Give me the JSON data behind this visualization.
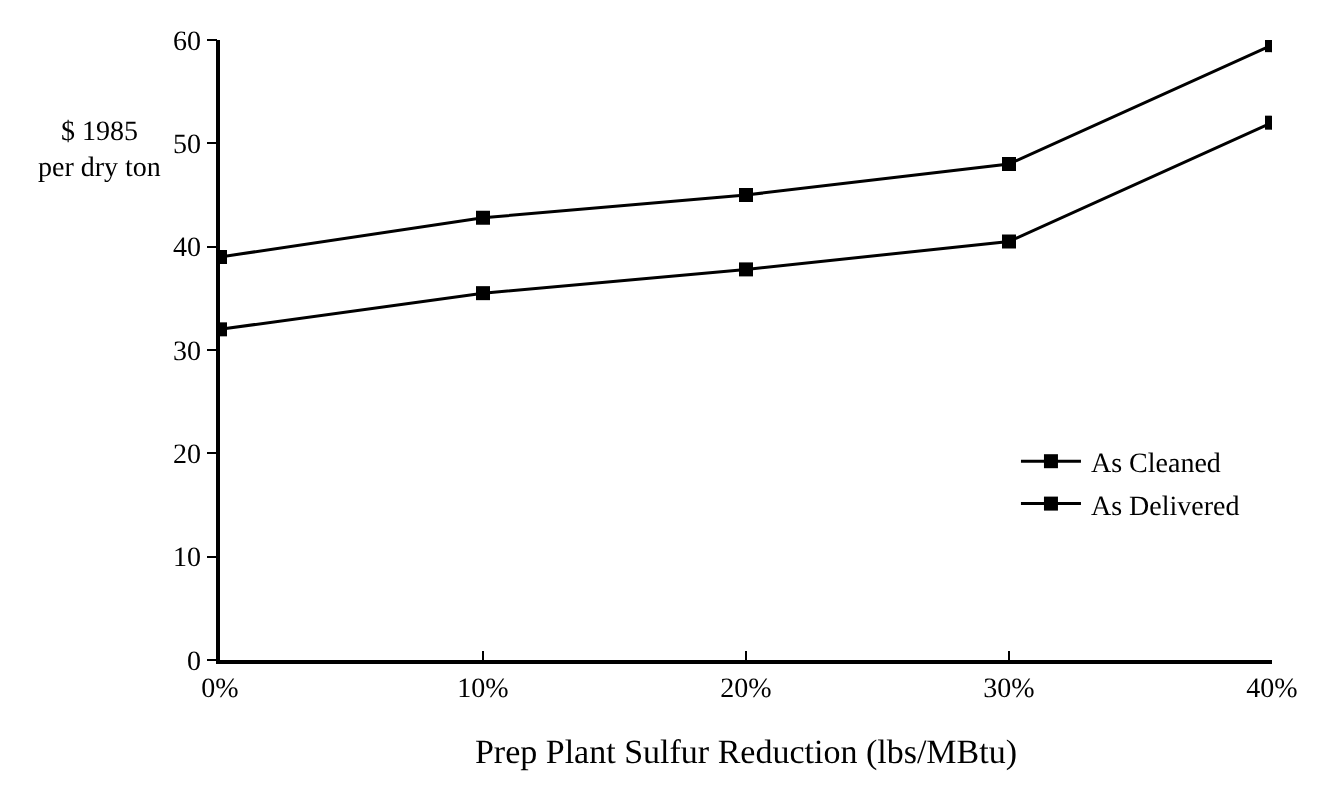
{
  "chart_data": {
    "type": "line",
    "x": [
      0,
      10,
      20,
      30,
      40
    ],
    "series": [
      {
        "name": "As Cleaned",
        "color": "#000000",
        "values": [
          32,
          35.5,
          37.8,
          40.5,
          52
        ]
      },
      {
        "name": "As Delivered",
        "color": "#000000",
        "values": [
          39,
          42.8,
          45,
          48,
          59.5
        ]
      }
    ],
    "xlabel": "Prep Plant Sulfur Reduction (lbs/MBtu)",
    "ylabel": "$ 1985\nper dry ton",
    "xlim": [
      0,
      40
    ],
    "xticks": [
      {
        "value": 0,
        "label": "0%"
      },
      {
        "value": 10,
        "label": "10%"
      },
      {
        "value": 20,
        "label": "20%"
      },
      {
        "value": 30,
        "label": "30%"
      },
      {
        "value": 40,
        "label": "40%"
      }
    ],
    "ylim": [
      0,
      60
    ],
    "yticks": [
      0,
      10,
      20,
      30,
      40,
      50,
      60
    ],
    "legend": "bottom right",
    "marker": "square",
    "line_style": "solid"
  }
}
